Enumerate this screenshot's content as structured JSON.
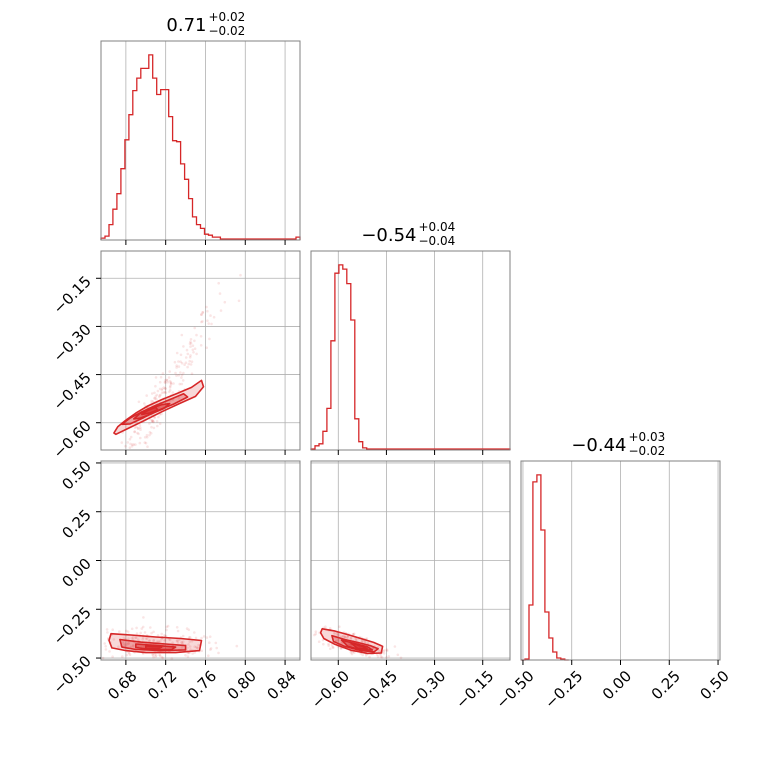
{
  "colors": {
    "accent": "#d62728",
    "grid": "#b0b0b0",
    "frame": "#808080"
  },
  "chart_data": [
    {
      "type": "histogram",
      "panel": "diag-0",
      "title": {
        "main": "0.71",
        "plus": "+0.02",
        "minus": "−0.02"
      },
      "xlim": [
        0.655,
        0.855
      ],
      "bins": {
        "start": 0.655,
        "width": 0.004,
        "counts": [
          2,
          4,
          16,
          32,
          48,
          74,
          104,
          130,
          155,
          168,
          178,
          178,
          192,
          168,
          151,
          156,
          156,
          128,
          103,
          102,
          79,
          63,
          43,
          24,
          16,
          12,
          6,
          5,
          3,
          3,
          1,
          1,
          1,
          1,
          1,
          1,
          1,
          1,
          1,
          1,
          1,
          1,
          1,
          1,
          1,
          1,
          1,
          1,
          1,
          3
        ]
      }
    },
    {
      "type": "histogram",
      "panel": "diag-1",
      "title": {
        "main": "−0.54",
        "plus": "+0.04",
        "minus": "−0.04"
      },
      "xlim": [
        -0.685,
        -0.065
      ],
      "bins": {
        "start": -0.685,
        "width": 0.0124,
        "counts": [
          1,
          4,
          6,
          18,
          40,
          105,
          170,
          178,
          174,
          160,
          125,
          30,
          8,
          2,
          1,
          1,
          1,
          1,
          1,
          1,
          1,
          1,
          1,
          1,
          1,
          1,
          1,
          1,
          1,
          1,
          1,
          1,
          1,
          1,
          1,
          1,
          1,
          1,
          1,
          1,
          1,
          1,
          1,
          1,
          1,
          1,
          1,
          1,
          1,
          1
        ]
      }
    },
    {
      "type": "histogram",
      "panel": "diag-2",
      "title": {
        "main": "−0.44",
        "plus": "+0.03",
        "minus": "−0.02"
      },
      "xlim": [
        -0.51,
        0.51
      ],
      "bins": {
        "start": -0.51,
        "width": 0.0204,
        "counts": [
          0,
          1,
          55,
          178,
          185,
          130,
          48,
          22,
          8,
          2,
          1,
          0
        ]
      }
    },
    {
      "type": "scatter",
      "panel": "pair-1-0",
      "xlim": [
        0.655,
        0.855
      ],
      "ylim": [
        -0.685,
        -0.065
      ],
      "contours": [
        [
          [
            0.668,
            -0.632
          ],
          [
            0.672,
            -0.612
          ],
          [
            0.68,
            -0.592
          ],
          [
            0.69,
            -0.57
          ],
          [
            0.702,
            -0.548
          ],
          [
            0.716,
            -0.528
          ],
          [
            0.732,
            -0.508
          ],
          [
            0.746,
            -0.49
          ],
          [
            0.756,
            -0.468
          ],
          [
            0.758,
            -0.488
          ],
          [
            0.75,
            -0.518
          ],
          [
            0.734,
            -0.54
          ],
          [
            0.716,
            -0.566
          ],
          [
            0.698,
            -0.594
          ],
          [
            0.682,
            -0.618
          ],
          [
            0.67,
            -0.636
          ]
        ],
        [
          [
            0.676,
            -0.605
          ],
          [
            0.684,
            -0.586
          ],
          [
            0.696,
            -0.566
          ],
          [
            0.71,
            -0.546
          ],
          [
            0.724,
            -0.528
          ],
          [
            0.738,
            -0.51
          ],
          [
            0.742,
            -0.52
          ],
          [
            0.728,
            -0.542
          ],
          [
            0.712,
            -0.562
          ],
          [
            0.698,
            -0.584
          ],
          [
            0.684,
            -0.604
          ]
        ],
        [
          [
            0.688,
            -0.588
          ],
          [
            0.694,
            -0.572
          ],
          [
            0.704,
            -0.556
          ],
          [
            0.716,
            -0.544
          ],
          [
            0.724,
            -0.54
          ],
          [
            0.718,
            -0.556
          ],
          [
            0.706,
            -0.572
          ],
          [
            0.694,
            -0.586
          ]
        ],
        [
          [
            0.696,
            -0.574
          ],
          [
            0.702,
            -0.562
          ],
          [
            0.71,
            -0.552
          ],
          [
            0.712,
            -0.56
          ],
          [
            0.704,
            -0.57
          ]
        ]
      ]
    },
    {
      "type": "scatter",
      "panel": "pair-2-0",
      "xlim": [
        0.655,
        0.855
      ],
      "ylim": [
        -0.51,
        0.51
      ],
      "contours": [
        [
          [
            0.665,
            -0.375
          ],
          [
            0.685,
            -0.382
          ],
          [
            0.71,
            -0.392
          ],
          [
            0.735,
            -0.4
          ],
          [
            0.756,
            -0.41
          ],
          [
            0.754,
            -0.462
          ],
          [
            0.73,
            -0.472
          ],
          [
            0.7,
            -0.472
          ],
          [
            0.68,
            -0.462
          ],
          [
            0.666,
            -0.448
          ],
          [
            0.663,
            -0.41
          ]
        ],
        [
          [
            0.674,
            -0.405
          ],
          [
            0.695,
            -0.418
          ],
          [
            0.72,
            -0.428
          ],
          [
            0.74,
            -0.436
          ],
          [
            0.74,
            -0.458
          ],
          [
            0.715,
            -0.462
          ],
          [
            0.69,
            -0.456
          ],
          [
            0.676,
            -0.444
          ]
        ],
        [
          [
            0.69,
            -0.428
          ],
          [
            0.712,
            -0.436
          ],
          [
            0.73,
            -0.444
          ],
          [
            0.726,
            -0.456
          ],
          [
            0.704,
            -0.456
          ],
          [
            0.69,
            -0.446
          ]
        ],
        [
          [
            0.7,
            -0.438
          ],
          [
            0.716,
            -0.444
          ],
          [
            0.712,
            -0.452
          ],
          [
            0.7,
            -0.45
          ]
        ]
      ]
    },
    {
      "type": "scatter",
      "panel": "pair-2-1",
      "xlim": [
        -0.685,
        -0.065
      ],
      "ylim": [
        -0.51,
        0.51
      ],
      "contours": [
        [
          [
            -0.65,
            -0.35
          ],
          [
            -0.61,
            -0.362
          ],
          [
            -0.57,
            -0.38
          ],
          [
            -0.53,
            -0.4
          ],
          [
            -0.49,
            -0.42
          ],
          [
            -0.462,
            -0.44
          ],
          [
            -0.466,
            -0.474
          ],
          [
            -0.51,
            -0.476
          ],
          [
            -0.56,
            -0.46
          ],
          [
            -0.61,
            -0.43
          ],
          [
            -0.645,
            -0.4
          ],
          [
            -0.655,
            -0.37
          ]
        ],
        [
          [
            -0.62,
            -0.385
          ],
          [
            -0.58,
            -0.405
          ],
          [
            -0.54,
            -0.42
          ],
          [
            -0.5,
            -0.436
          ],
          [
            -0.476,
            -0.452
          ],
          [
            -0.488,
            -0.468
          ],
          [
            -0.53,
            -0.462
          ],
          [
            -0.58,
            -0.44
          ],
          [
            -0.615,
            -0.415
          ]
        ],
        [
          [
            -0.59,
            -0.408
          ],
          [
            -0.55,
            -0.425
          ],
          [
            -0.51,
            -0.442
          ],
          [
            -0.494,
            -0.458
          ],
          [
            -0.53,
            -0.458
          ],
          [
            -0.57,
            -0.44
          ]
        ],
        [
          [
            -0.56,
            -0.424
          ],
          [
            -0.525,
            -0.44
          ],
          [
            -0.51,
            -0.452
          ],
          [
            -0.54,
            -0.45
          ]
        ]
      ]
    }
  ],
  "axes": {
    "x0_ticks": {
      "values": [
        0.68,
        0.72,
        0.76,
        0.8,
        0.84
      ],
      "labels": [
        "0.68",
        "0.72",
        "0.76",
        "0.80",
        "0.84"
      ]
    },
    "x1_ticks": {
      "values": [
        -0.6,
        -0.45,
        -0.3,
        -0.15
      ],
      "labels": [
        "−0.60",
        "−0.45",
        "−0.30",
        "−0.15"
      ]
    },
    "x2_ticks": {
      "values": [
        -0.5,
        -0.25,
        0.0,
        0.25,
        0.5
      ],
      "labels": [
        "−0.50",
        "−0.25",
        "0.00",
        "0.25",
        "0.50"
      ]
    },
    "y1_ticks": {
      "values": [
        -0.15,
        -0.3,
        -0.45,
        -0.6
      ],
      "labels": [
        "−0.15",
        "−0.30",
        "−0.45",
        "−0.60"
      ]
    },
    "y2_ticks": {
      "values": [
        0.5,
        0.25,
        0.0,
        -0.25,
        -0.5
      ],
      "labels": [
        "0.50",
        "0.25",
        "0.00",
        "−0.25",
        "−0.50"
      ]
    }
  }
}
